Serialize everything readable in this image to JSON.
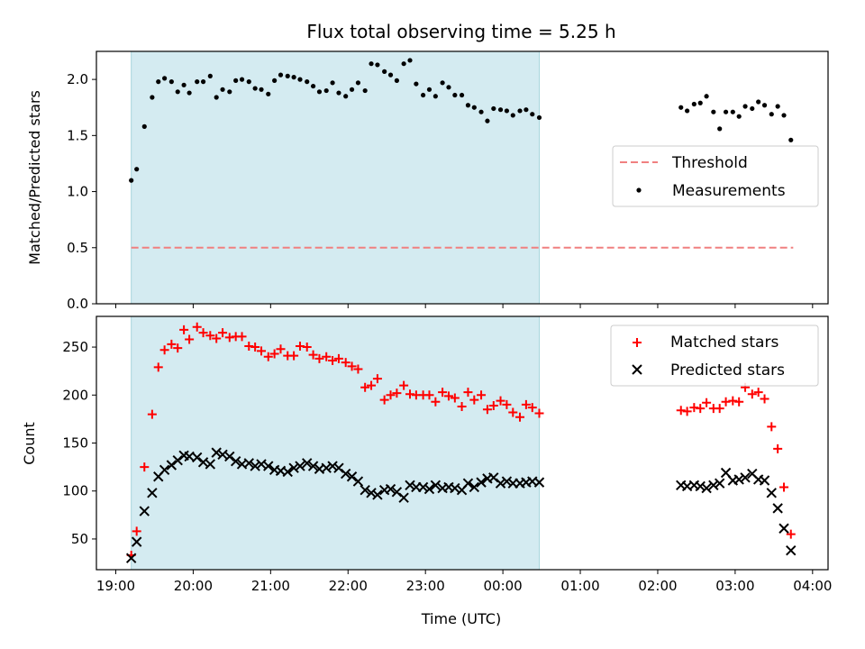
{
  "chart_data": [
    {
      "type": "scatter",
      "panel": "top",
      "title": "Flux total observing time = 5.25 h",
      "ylabel": "Matched/Predicted stars",
      "xlabel": "",
      "ylim": [
        0.0,
        2.25
      ],
      "yticks": [
        "0.0",
        "0.5",
        "1.0",
        "1.5",
        "2.0"
      ],
      "yticks_values": [
        0.0,
        0.5,
        1.0,
        1.5,
        2.0
      ],
      "xlim": [
        18.75,
        28.2
      ],
      "grid": false,
      "shaded_region": [
        19.2,
        24.47
      ],
      "shade_color": "#d4ebf1",
      "legend": {
        "placement": "right",
        "entries": [
          "Threshold",
          "Measurements"
        ]
      },
      "series": [
        {
          "name": "Threshold",
          "kind": "dashed-line",
          "color": "#f08080",
          "x": [
            19.2,
            27.75
          ],
          "y": [
            0.5,
            0.5
          ]
        },
        {
          "name": "Measurements",
          "kind": "dots",
          "color": "#000000",
          "x": [
            19.2,
            19.27,
            19.37,
            19.47,
            19.55,
            19.63,
            19.72,
            19.8,
            19.88,
            19.95,
            20.05,
            20.13,
            20.22,
            20.3,
            20.38,
            20.47,
            20.55,
            20.63,
            20.72,
            20.8,
            20.88,
            20.97,
            21.05,
            21.13,
            21.22,
            21.3,
            21.38,
            21.47,
            21.55,
            21.63,
            21.72,
            21.8,
            21.88,
            21.97,
            22.05,
            22.13,
            22.22,
            22.3,
            22.38,
            22.47,
            22.55,
            22.63,
            22.72,
            22.8,
            22.88,
            22.97,
            23.05,
            23.13,
            23.22,
            23.3,
            23.38,
            23.47,
            23.55,
            23.63,
            23.72,
            23.8,
            23.88,
            23.97,
            24.05,
            24.13,
            24.22,
            24.3,
            24.38,
            24.47,
            26.3,
            26.38,
            26.47,
            26.55,
            26.63,
            26.72,
            26.8,
            26.88,
            26.97,
            27.05,
            27.13,
            27.22,
            27.3,
            27.38,
            27.47,
            27.55,
            27.63,
            27.72
          ],
          "y": [
            1.1,
            1.2,
            1.58,
            1.84,
            1.98,
            2.01,
            1.98,
            1.89,
            1.95,
            1.88,
            1.98,
            1.98,
            2.03,
            1.84,
            1.91,
            1.89,
            1.99,
            2.0,
            1.98,
            1.92,
            1.91,
            1.87,
            1.99,
            2.04,
            2.03,
            2.02,
            2.0,
            1.98,
            1.94,
            1.89,
            1.9,
            1.97,
            1.88,
            1.85,
            1.91,
            1.97,
            1.9,
            2.14,
            2.13,
            2.07,
            2.04,
            1.99,
            2.14,
            2.17,
            1.96,
            1.86,
            1.91,
            1.85,
            1.97,
            1.93,
            1.86,
            1.86,
            1.77,
            1.75,
            1.71,
            1.63,
            1.74,
            1.73,
            1.72,
            1.68,
            1.72,
            1.73,
            1.69,
            1.66,
            1.75,
            1.72,
            1.78,
            1.79,
            1.85,
            1.71,
            1.56,
            1.71,
            1.71,
            1.67,
            1.76,
            1.74,
            1.8,
            1.77,
            1.69,
            1.76,
            1.68,
            1.46
          ]
        }
      ]
    },
    {
      "type": "scatter",
      "panel": "bottom",
      "title": "",
      "ylabel": "Count",
      "xlabel": "Time (UTC)",
      "ylim": [
        18,
        282
      ],
      "yticks": [
        "50",
        "100",
        "150",
        "200",
        "250"
      ],
      "yticks_values": [
        50,
        100,
        150,
        200,
        250
      ],
      "xlim": [
        18.75,
        28.2
      ],
      "xticks": [
        "19:00",
        "20:00",
        "21:00",
        "22:00",
        "23:00",
        "00:00",
        "01:00",
        "02:00",
        "03:00",
        "04:00"
      ],
      "xticks_values": [
        19,
        20,
        21,
        22,
        23,
        24,
        25,
        26,
        27,
        28
      ],
      "grid": false,
      "shaded_region": [
        19.2,
        24.47
      ],
      "shade_color": "#d4ebf1",
      "legend": {
        "placement": "top-right",
        "entries": [
          "Matched stars",
          "Predicted stars"
        ]
      },
      "series": [
        {
          "name": "Matched stars",
          "marker": "plus",
          "color": "#ff0000",
          "x": [
            19.2,
            19.27,
            19.37,
            19.47,
            19.55,
            19.63,
            19.72,
            19.8,
            19.88,
            19.95,
            20.05,
            20.13,
            20.22,
            20.3,
            20.38,
            20.47,
            20.55,
            20.63,
            20.72,
            20.8,
            20.88,
            20.97,
            21.05,
            21.13,
            21.22,
            21.3,
            21.38,
            21.47,
            21.55,
            21.63,
            21.72,
            21.8,
            21.88,
            21.97,
            22.05,
            22.13,
            22.22,
            22.3,
            22.38,
            22.47,
            22.55,
            22.63,
            22.72,
            22.8,
            22.88,
            22.97,
            23.05,
            23.13,
            23.22,
            23.3,
            23.38,
            23.47,
            23.55,
            23.63,
            23.72,
            23.8,
            23.88,
            23.97,
            24.05,
            24.13,
            24.22,
            24.3,
            24.38,
            24.47,
            26.3,
            26.38,
            26.47,
            26.55,
            26.63,
            26.72,
            26.8,
            26.88,
            26.97,
            27.05,
            27.13,
            27.22,
            27.3,
            27.38,
            27.47,
            27.55,
            27.63,
            27.72
          ],
          "y": [
            33,
            58,
            125,
            180,
            229,
            247,
            253,
            249,
            268,
            258,
            271,
            265,
            262,
            259,
            265,
            260,
            261,
            261,
            251,
            250,
            246,
            240,
            243,
            248,
            241,
            241,
            251,
            250,
            242,
            238,
            240,
            236,
            238,
            234,
            230,
            227,
            208,
            210,
            217,
            195,
            200,
            202,
            210,
            201,
            200,
            200,
            200,
            193,
            203,
            199,
            197,
            188,
            203,
            195,
            200,
            185,
            189,
            194,
            190,
            182,
            177,
            190,
            187,
            181,
            184,
            183,
            187,
            186,
            192,
            186,
            186,
            193,
            194,
            193,
            208,
            201,
            203,
            196,
            167,
            144,
            104,
            55
          ]
        },
        {
          "name": "Predicted stars",
          "marker": "cross",
          "color": "#000000",
          "x": [
            19.2,
            19.27,
            19.37,
            19.47,
            19.55,
            19.63,
            19.72,
            19.8,
            19.88,
            19.95,
            20.05,
            20.13,
            20.22,
            20.3,
            20.38,
            20.47,
            20.55,
            20.63,
            20.72,
            20.8,
            20.88,
            20.97,
            21.05,
            21.13,
            21.22,
            21.3,
            21.38,
            21.47,
            21.55,
            21.63,
            21.72,
            21.8,
            21.88,
            21.97,
            22.05,
            22.13,
            22.22,
            22.3,
            22.38,
            22.47,
            22.55,
            22.63,
            22.72,
            22.8,
            22.88,
            22.97,
            23.05,
            23.13,
            23.22,
            23.3,
            23.38,
            23.47,
            23.55,
            23.63,
            23.72,
            23.8,
            23.88,
            23.97,
            24.05,
            24.13,
            24.22,
            24.3,
            24.38,
            24.47,
            26.3,
            26.38,
            26.47,
            26.55,
            26.63,
            26.72,
            26.8,
            26.88,
            26.97,
            27.05,
            27.13,
            27.22,
            27.3,
            27.38,
            27.47,
            27.55,
            27.63,
            27.72
          ],
          "y": [
            30,
            47,
            79,
            98,
            115,
            122,
            127,
            132,
            137,
            136,
            135,
            130,
            128,
            140,
            138,
            136,
            131,
            128,
            129,
            126,
            128,
            126,
            122,
            121,
            120,
            124,
            126,
            129,
            126,
            123,
            124,
            126,
            124,
            118,
            115,
            110,
            101,
            98,
            96,
            101,
            102,
            99,
            93,
            106,
            104,
            104,
            102,
            106,
            103,
            104,
            103,
            101,
            108,
            104,
            109,
            113,
            114,
            108,
            110,
            108,
            108,
            109,
            110,
            109,
            106,
            105,
            106,
            105,
            103,
            106,
            108,
            119,
            111,
            112,
            114,
            118,
            112,
            111,
            98,
            82,
            61,
            38
          ]
        }
      ]
    }
  ]
}
